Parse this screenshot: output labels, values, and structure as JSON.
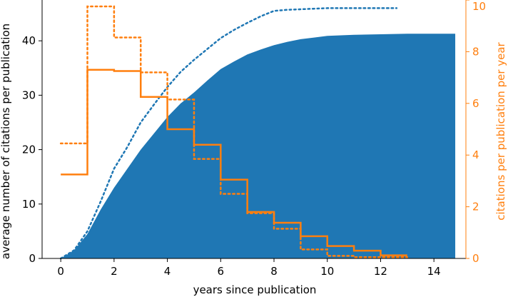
{
  "chart_data": {
    "type": "area",
    "xlabel": "years since publication",
    "ylabel_left": "average number of citations per publication",
    "ylabel_right": "citations per publication per year",
    "xlim": [
      -0.7,
      15.2
    ],
    "ylim_left": [
      0,
      47.5
    ],
    "ylim_right": [
      0,
      10
    ],
    "x_ticks": [
      0,
      2,
      4,
      6,
      8,
      10,
      12,
      14
    ],
    "y_left_ticks": [
      0,
      10,
      20,
      30,
      40
    ],
    "y_right_ticks": [
      0,
      2,
      4,
      6,
      8,
      10
    ],
    "grid": false,
    "legend": "none",
    "colors": {
      "blue": "#1f77b4",
      "orange": "#ff7f0e"
    },
    "series": [
      {
        "style": "filled-area",
        "axis": "left",
        "x": [
          0,
          0.5,
          1,
          1.5,
          2,
          2.5,
          3,
          3.5,
          4,
          4.5,
          5,
          5.5,
          6,
          6.5,
          7,
          7.5,
          8,
          8.5,
          9,
          9.5,
          10,
          11,
          12,
          13,
          14,
          14.8
        ],
        "y": [
          0,
          1.5,
          4.5,
          9,
          13,
          16.5,
          20,
          23,
          26,
          28.5,
          30.5,
          32.7,
          34.8,
          36.2,
          37.5,
          38.4,
          39.2,
          39.8,
          40.3,
          40.6,
          40.9,
          41.1,
          41.2,
          41.3,
          41.3,
          41.3
        ]
      },
      {
        "style": "dotted-line",
        "axis": "left",
        "x": [
          0,
          0.5,
          1,
          1.5,
          2,
          2.5,
          3,
          3.5,
          4,
          4.5,
          5,
          5.5,
          6,
          6.5,
          7,
          7.5,
          8,
          8.5,
          9,
          9.5,
          10,
          11,
          12,
          12.6
        ],
        "y": [
          0,
          1.5,
          5,
          10.5,
          16.5,
          20.5,
          25,
          28.3,
          31.5,
          34.3,
          36.5,
          38.5,
          40.5,
          42,
          43.3,
          44.5,
          45.5,
          45.7,
          45.8,
          45.9,
          46,
          46,
          46,
          46
        ]
      },
      {
        "style": "solid-step",
        "axis": "right",
        "edges": [
          0,
          1,
          2,
          3,
          4,
          5,
          6,
          7,
          8,
          9,
          10,
          11,
          12,
          13
        ],
        "values": [
          3.25,
          7.3,
          7.25,
          6.25,
          5.0,
          4.4,
          3.05,
          1.8,
          1.38,
          0.86,
          0.48,
          0.3,
          0.12
        ]
      },
      {
        "style": "dotted-step",
        "axis": "right",
        "edges": [
          0,
          1,
          2,
          3,
          4,
          5,
          6,
          7,
          8,
          9,
          10,
          11,
          12,
          13
        ],
        "values": [
          4.45,
          9.75,
          8.55,
          7.2,
          6.15,
          3.85,
          2.5,
          1.75,
          1.15,
          0.35,
          0.1,
          0.05,
          0.05
        ]
      }
    ]
  }
}
